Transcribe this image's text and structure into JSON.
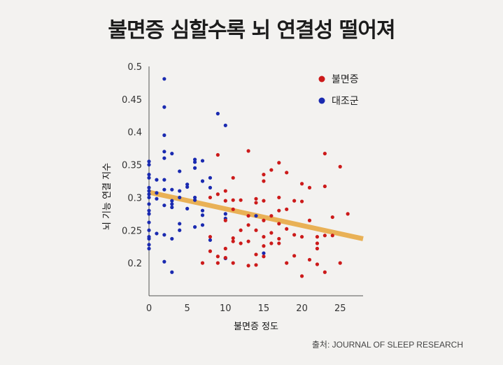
{
  "title": "불면증 심할수록 뇌 연결성 떨어져",
  "source": "출처: JOURNAL OF SLEEP RESEARCH",
  "colors": {
    "insomnia": "#cc1a1a",
    "control": "#1a2ab0",
    "trend": "#e9b156",
    "background": "#f3f2f0"
  },
  "chart_data": {
    "type": "scatter",
    "xlabel": "불면증 정도",
    "ylabel": "뇌 기능 연결 지수",
    "xlim": [
      0,
      28
    ],
    "ylim": [
      0.15,
      0.5
    ],
    "xticks": [
      "0",
      "5",
      "10",
      "15",
      "20",
      "25"
    ],
    "xtick_values": [
      0,
      5,
      10,
      15,
      20,
      25
    ],
    "yticks": [
      "0.5",
      "0.45",
      "0.4",
      "0.35",
      "0.3",
      "0.25",
      "0.2"
    ],
    "ytick_values": [
      0.5,
      0.45,
      0.4,
      0.35,
      0.3,
      0.25,
      0.2
    ],
    "legend": [
      {
        "label": "불면증",
        "color": "#cc1a1a"
      },
      {
        "label": "대조군",
        "color": "#1a2ab0"
      }
    ],
    "trendline": {
      "x": [
        0,
        28
      ],
      "y": [
        0.308,
        0.237
      ]
    },
    "series": [
      {
        "name": "대조군",
        "color": "#1a2ab0",
        "points": [
          [
            0,
            0.355
          ],
          [
            0,
            0.35
          ],
          [
            0,
            0.335
          ],
          [
            0,
            0.33
          ],
          [
            0,
            0.315
          ],
          [
            0,
            0.31
          ],
          [
            0,
            0.305
          ],
          [
            0,
            0.3
          ],
          [
            0,
            0.29
          ],
          [
            0,
            0.28
          ],
          [
            0,
            0.275
          ],
          [
            0,
            0.262
          ],
          [
            0,
            0.25
          ],
          [
            0,
            0.24
          ],
          [
            0,
            0.237
          ],
          [
            0,
            0.228
          ],
          [
            0,
            0.222
          ],
          [
            1,
            0.327
          ],
          [
            1,
            0.307
          ],
          [
            1,
            0.298
          ],
          [
            1,
            0.245
          ],
          [
            2,
            0.481
          ],
          [
            2,
            0.438
          ],
          [
            2,
            0.395
          ],
          [
            2,
            0.37
          ],
          [
            2,
            0.36
          ],
          [
            2,
            0.327
          ],
          [
            2,
            0.312
          ],
          [
            2,
            0.288
          ],
          [
            2,
            0.243
          ],
          [
            2,
            0.202
          ],
          [
            3,
            0.367
          ],
          [
            3,
            0.312
          ],
          [
            3,
            0.295
          ],
          [
            3,
            0.29
          ],
          [
            3,
            0.285
          ],
          [
            3,
            0.237
          ],
          [
            3,
            0.186
          ],
          [
            4,
            0.34
          ],
          [
            4,
            0.31
          ],
          [
            4,
            0.3
          ],
          [
            4,
            0.26
          ],
          [
            4,
            0.25
          ],
          [
            5,
            0.32
          ],
          [
            5,
            0.316
          ],
          [
            5,
            0.283
          ],
          [
            6,
            0.358
          ],
          [
            6,
            0.354
          ],
          [
            6,
            0.345
          ],
          [
            6,
            0.3
          ],
          [
            6,
            0.296
          ],
          [
            6,
            0.255
          ],
          [
            7,
            0.356
          ],
          [
            7,
            0.325
          ],
          [
            7,
            0.28
          ],
          [
            7,
            0.273
          ],
          [
            7,
            0.258
          ],
          [
            8,
            0.33
          ],
          [
            8,
            0.315
          ],
          [
            8,
            0.235
          ],
          [
            9,
            0.428
          ],
          [
            10,
            0.41
          ],
          [
            10,
            0.275
          ],
          [
            10,
            0.268
          ],
          [
            10,
            0.207
          ],
          [
            14,
            0.272
          ],
          [
            15,
            0.215
          ]
        ]
      },
      {
        "name": "불면증",
        "color": "#cc1a1a",
        "points": [
          [
            7,
            0.2
          ],
          [
            8,
            0.3
          ],
          [
            8,
            0.24
          ],
          [
            8,
            0.218
          ],
          [
            9,
            0.365
          ],
          [
            9,
            0.305
          ],
          [
            9,
            0.21
          ],
          [
            9,
            0.2
          ],
          [
            10,
            0.31
          ],
          [
            10,
            0.295
          ],
          [
            10,
            0.265
          ],
          [
            10,
            0.222
          ],
          [
            10,
            0.208
          ],
          [
            11,
            0.33
          ],
          [
            11,
            0.296
          ],
          [
            11,
            0.282
          ],
          [
            11,
            0.238
          ],
          [
            11,
            0.233
          ],
          [
            11,
            0.2
          ],
          [
            12,
            0.296
          ],
          [
            12,
            0.25
          ],
          [
            12,
            0.23
          ],
          [
            13,
            0.371
          ],
          [
            13,
            0.272
          ],
          [
            13,
            0.258
          ],
          [
            13,
            0.233
          ],
          [
            13,
            0.196
          ],
          [
            14,
            0.298
          ],
          [
            14,
            0.292
          ],
          [
            14,
            0.25
          ],
          [
            14,
            0.213
          ],
          [
            14,
            0.197
          ],
          [
            15,
            0.335
          ],
          [
            15,
            0.325
          ],
          [
            15,
            0.295
          ],
          [
            15,
            0.265
          ],
          [
            15,
            0.24
          ],
          [
            15,
            0.226
          ],
          [
            15,
            0.21
          ],
          [
            16,
            0.342
          ],
          [
            16,
            0.272
          ],
          [
            16,
            0.246
          ],
          [
            16,
            0.23
          ],
          [
            17,
            0.353
          ],
          [
            17,
            0.3
          ],
          [
            17,
            0.28
          ],
          [
            17,
            0.26
          ],
          [
            17,
            0.237
          ],
          [
            17,
            0.23
          ],
          [
            18,
            0.338
          ],
          [
            18,
            0.282
          ],
          [
            18,
            0.252
          ],
          [
            18,
            0.2
          ],
          [
            19,
            0.295
          ],
          [
            19,
            0.243
          ],
          [
            19,
            0.211
          ],
          [
            20,
            0.321
          ],
          [
            20,
            0.294
          ],
          [
            20,
            0.24
          ],
          [
            20,
            0.18
          ],
          [
            21,
            0.315
          ],
          [
            21,
            0.265
          ],
          [
            21,
            0.205
          ],
          [
            22,
            0.24
          ],
          [
            22,
            0.23
          ],
          [
            22,
            0.222
          ],
          [
            22,
            0.198
          ],
          [
            23,
            0.367
          ],
          [
            23,
            0.317
          ],
          [
            23,
            0.242
          ],
          [
            23,
            0.186
          ],
          [
            24,
            0.27
          ],
          [
            24,
            0.242
          ],
          [
            25,
            0.347
          ],
          [
            25,
            0.2
          ],
          [
            26,
            0.275
          ]
        ]
      }
    ]
  }
}
